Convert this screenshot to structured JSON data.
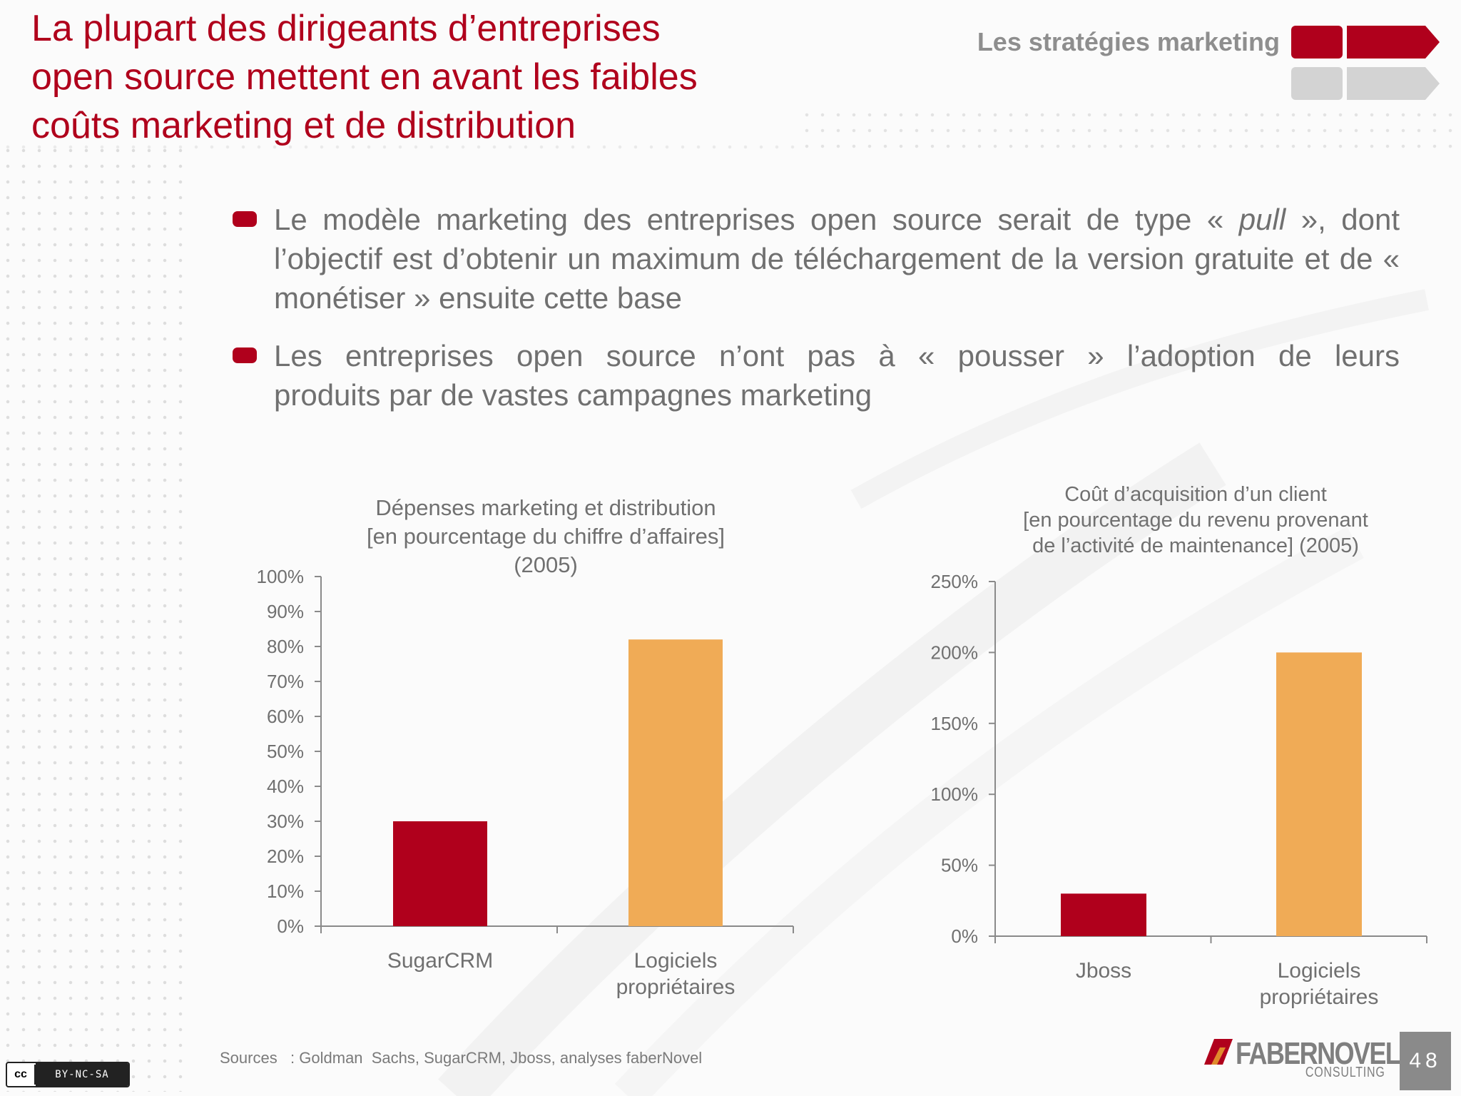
{
  "slide": {
    "title_lines": [
      "La plupart des dirigeants d’entreprises",
      "open source mettent en avant les faibles",
      "coûts marketing et de distribution"
    ],
    "section_label": "Les stratégies marketing",
    "page_number": "48"
  },
  "bullets": [
    {
      "text_before": "Le modèle marketing des entreprises open source serait de type « ",
      "text_em": "pull",
      "text_after": " », dont l’objectif est d’obtenir un maximum de téléchargement de la version gratuite et de « monétiser » ensuite cette base"
    },
    {
      "text_before": "Les entreprises open source n’ont pas à « pousser » l’adoption de leurs",
      "text_em": "",
      "text_after": "produits par de vastes campagnes marketing"
    }
  ],
  "chart_data": [
    {
      "type": "bar",
      "title_lines": [
        "Dépenses marketing et distribution",
        "[en pourcentage du chiffre d’affaires]",
        "(2005)"
      ],
      "categories": [
        [
          "SugarCRM"
        ],
        [
          "Logiciels",
          "propriétaires"
        ]
      ],
      "values": [
        30,
        82
      ],
      "colors": [
        "#b0001c",
        "#f0ab56"
      ],
      "ylim": [
        0,
        100
      ],
      "yticks": [
        0,
        10,
        20,
        30,
        40,
        50,
        60,
        70,
        80,
        90,
        100
      ],
      "ytick_labels": [
        "0%",
        "10%",
        "20%",
        "30%",
        "40%",
        "50%",
        "60%",
        "70%",
        "80%",
        "90%",
        "100%"
      ],
      "grid": false
    },
    {
      "type": "bar",
      "title_lines": [
        "Coût d’acquisition d’un client",
        "[en pourcentage du revenu provenant",
        "de l’activité de maintenance] (2005)"
      ],
      "categories": [
        [
          "Jboss"
        ],
        [
          "Logiciels",
          "propriétaires"
        ]
      ],
      "values": [
        30,
        200
      ],
      "colors": [
        "#b0001c",
        "#f0ab56"
      ],
      "ylim": [
        0,
        250
      ],
      "yticks": [
        0,
        50,
        100,
        150,
        200,
        250
      ],
      "ytick_labels": [
        "0%",
        "50%",
        "100%",
        "150%",
        "200%",
        "250%"
      ],
      "grid": false
    }
  ],
  "footer": {
    "sources": "Sources   : Goldman  Sachs, SugarCRM, Jboss, analyses faberNovel",
    "license": "BY-NC-SA",
    "license_logo": "cc",
    "brand_name": "FABERNOVEL",
    "brand_sub": "CONSULTING"
  },
  "colors": {
    "accent": "#b0001c",
    "secondary_bar": "#f0ab56",
    "text_gray": "#707070",
    "section_gray": "#8e8e8e"
  },
  "icons": [
    "nav-arrow-active-icon",
    "nav-arrow-inactive-icon",
    "creative-commons-icon",
    "fabernovel-logo-icon"
  ]
}
